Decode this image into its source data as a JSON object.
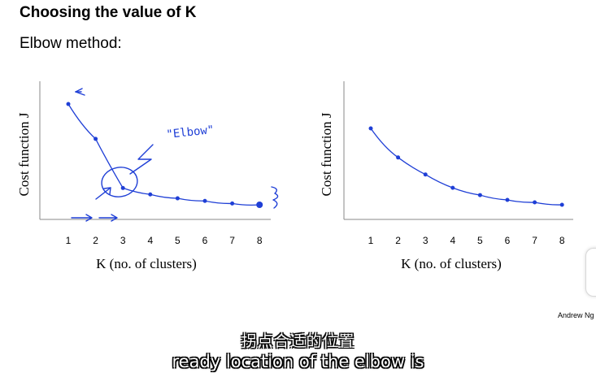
{
  "slide": {
    "title": "Choosing the value of K",
    "subtitle": "Elbow method:",
    "author": "Andrew Ng"
  },
  "subtitles": {
    "chinese": "拐点合适的位置",
    "english": "ready location of the elbow is"
  },
  "annotations": {
    "elbow_label": "\"Elbow\""
  },
  "colors": {
    "ink": "#1f3fd6",
    "axis": "#8a8a8a"
  },
  "chart_data": [
    {
      "type": "line",
      "xlabel": "K (no. of clusters)",
      "ylabel": "Cost function J",
      "x": [
        1,
        2,
        3,
        4,
        5,
        6,
        7,
        8
      ],
      "values": [
        0.95,
        0.68,
        0.3,
        0.25,
        0.22,
        0.2,
        0.18,
        0.17
      ],
      "xlim": [
        0,
        8.6
      ],
      "ylim": [
        0,
        1
      ],
      "grid": false
    },
    {
      "type": "line",
      "xlabel": "K (no. of clusters)",
      "ylabel": "Cost function J",
      "x": [
        1,
        2,
        3,
        4,
        5,
        6,
        7,
        8
      ],
      "values": [
        0.8,
        0.56,
        0.42,
        0.31,
        0.25,
        0.21,
        0.19,
        0.17
      ],
      "xlim": [
        0,
        8.6
      ],
      "ylim": [
        0,
        1
      ],
      "grid": false
    }
  ]
}
